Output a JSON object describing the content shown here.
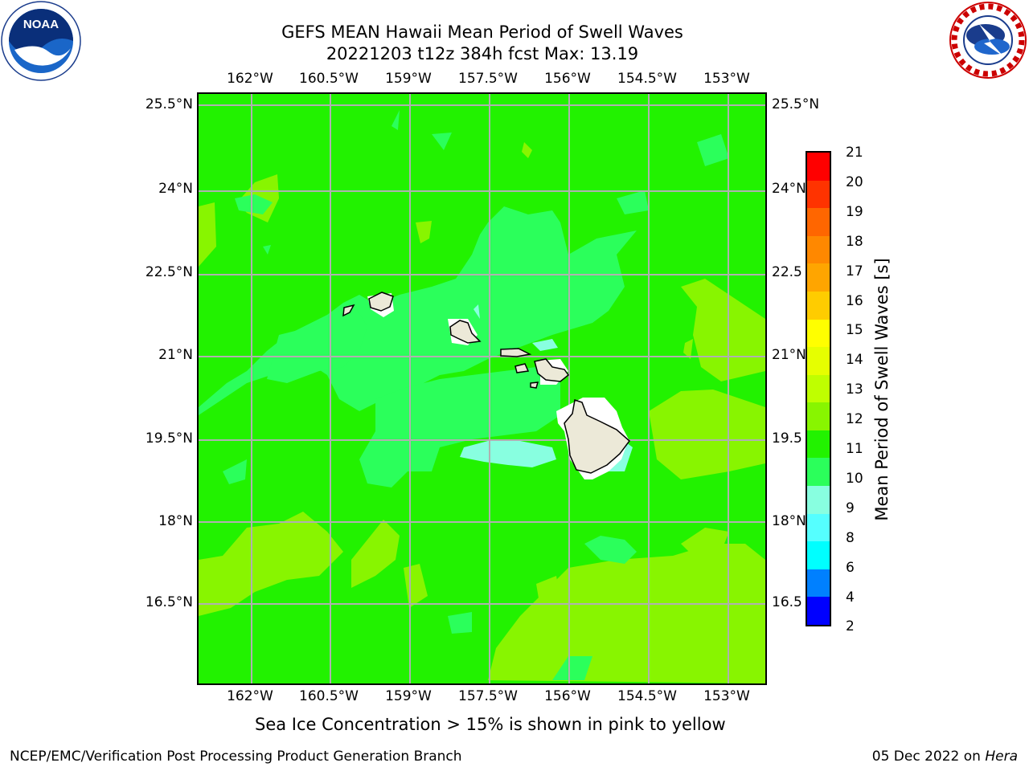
{
  "header": {
    "title_line1": "GEFS MEAN Hawaii Mean Period of Swell Waves",
    "title_line2": "20221203 t12z 384h fcst   Max: 13.19"
  },
  "map": {
    "lon_ticks": [
      "162°W",
      "160.5°W",
      "159°W",
      "157.5°W",
      "156°W",
      "154.5°W",
      "153°W"
    ],
    "lat_ticks_left": [
      "25.5°N",
      "24°N",
      "22.5°N",
      "21°N",
      "19.5°N",
      "18°N",
      "16.5°N"
    ],
    "lat_ticks_right": [
      "25.5°N",
      "24°N",
      "22.5",
      "21°N",
      "19.5",
      "18°N",
      "16.5"
    ],
    "field_colors": {
      "base": "#22f200",
      "band_10_11": "#2bff5b",
      "band_9_10": "#88ffe0",
      "band_12_13": "#88f500"
    },
    "land_color": "#ece9d8"
  },
  "colorbar": {
    "title": "Mean Period of Swell Waves [s]",
    "labels": [
      "21",
      "20",
      "19",
      "18",
      "17",
      "16",
      "15",
      "14",
      "13",
      "12",
      "11",
      "10",
      "9",
      "8",
      "6",
      "4",
      "2"
    ],
    "colors": [
      "#ff0000",
      "#ff3300",
      "#ff6600",
      "#ff8800",
      "#ffa500",
      "#ffcc00",
      "#ffff00",
      "#e6ff00",
      "#bfff00",
      "#88f500",
      "#22f200",
      "#2bff5b",
      "#88ffe0",
      "#55ffff",
      "#00ffff",
      "#0080ff",
      "#0000ff"
    ]
  },
  "footer": {
    "note": "Sea Ice Concentration > 15% is shown in pink to yellow",
    "credit": "NCEP/EMC/Verification Post Processing Product Generation Branch",
    "date": "05 Dec 2022 on",
    "host": "Hera"
  },
  "logos": {
    "noaa_text": "NOAA",
    "nws_icon": "national-weather-service-logo"
  }
}
